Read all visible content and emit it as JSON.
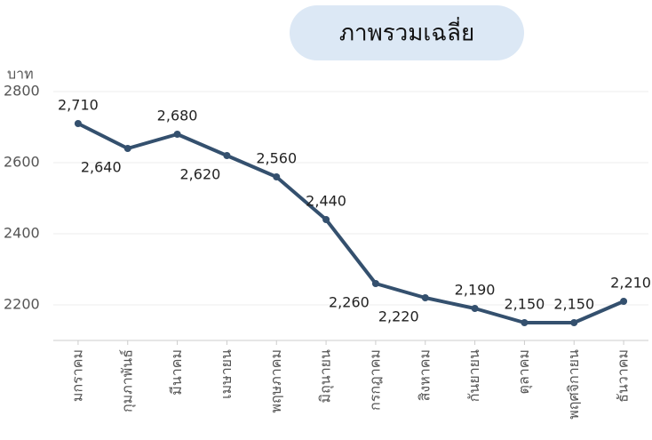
{
  "chart_data": {
    "type": "line",
    "title": "ภาพรวมเฉลี่ย",
    "y_label": "บาท",
    "categories": [
      "มกราคม",
      "กุมภาพันธ์",
      "มีนาคม",
      "เมษายน",
      "พฤษภาคม",
      "มิถุนายน",
      "กรกฎาคม",
      "สิงหาคม",
      "กันยายน",
      "ตุลาคม",
      "พฤศจิกายน",
      "ธันวาคม"
    ],
    "series": [
      {
        "name": "ภาพรวมเฉลี่ย",
        "color": "#34506e",
        "values": [
          2710,
          2640,
          2680,
          2620,
          2560,
          2440,
          2260,
          2220,
          2190,
          2150,
          2150,
          2210
        ],
        "value_labels": [
          "2,710",
          "2,640",
          "2,680",
          "2,620",
          "2,560",
          "2,440",
          "2,260",
          "2,220",
          "2,190",
          "2,150",
          "2,150",
          "2,210"
        ]
      }
    ],
    "ylim": [
      2100,
      2800
    ],
    "yticks": [
      2200,
      2400,
      2600,
      2800
    ],
    "grid": true
  }
}
